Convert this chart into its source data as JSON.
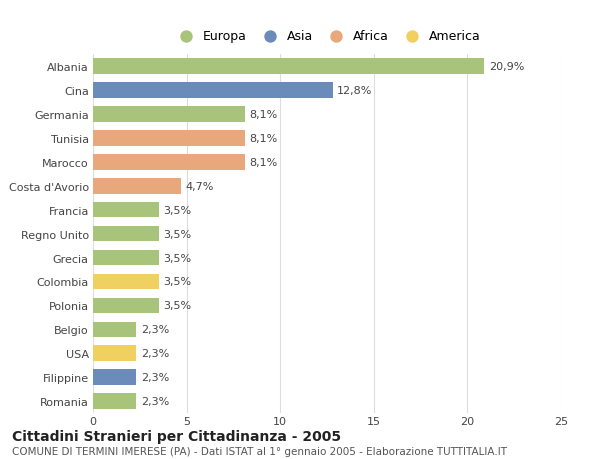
{
  "categories": [
    "Albania",
    "Cina",
    "Germania",
    "Tunisia",
    "Marocco",
    "Costa d'Avorio",
    "Francia",
    "Regno Unito",
    "Grecia",
    "Colombia",
    "Polonia",
    "Belgio",
    "USA",
    "Filippine",
    "Romania"
  ],
  "values": [
    20.9,
    12.8,
    8.1,
    8.1,
    8.1,
    4.7,
    3.5,
    3.5,
    3.5,
    3.5,
    3.5,
    2.3,
    2.3,
    2.3,
    2.3
  ],
  "labels": [
    "20,9%",
    "12,8%",
    "8,1%",
    "8,1%",
    "8,1%",
    "4,7%",
    "3,5%",
    "3,5%",
    "3,5%",
    "3,5%",
    "3,5%",
    "2,3%",
    "2,3%",
    "2,3%",
    "2,3%"
  ],
  "continents": [
    "Europa",
    "Asia",
    "Europa",
    "Africa",
    "Africa",
    "Africa",
    "Europa",
    "Europa",
    "Europa",
    "America",
    "Europa",
    "Europa",
    "America",
    "Asia",
    "Europa"
  ],
  "continent_colors": {
    "Europa": "#a8c47a",
    "Asia": "#6b8cba",
    "Africa": "#e8a87c",
    "America": "#f0d060"
  },
  "legend_order": [
    "Europa",
    "Asia",
    "Africa",
    "America"
  ],
  "title": "Cittadini Stranieri per Cittadinanza - 2005",
  "subtitle": "COMUNE DI TERMINI IMERESE (PA) - Dati ISTAT al 1° gennaio 2005 - Elaborazione TUTTITALIA.IT",
  "xlim": [
    0,
    25
  ],
  "xticks": [
    0,
    5,
    10,
    15,
    20,
    25
  ],
  "background_color": "#ffffff",
  "grid_color": "#dddddd",
  "bar_height": 0.65,
  "label_fontsize": 8,
  "tick_fontsize": 8,
  "title_fontsize": 10,
  "subtitle_fontsize": 7.5,
  "legend_fontsize": 9
}
